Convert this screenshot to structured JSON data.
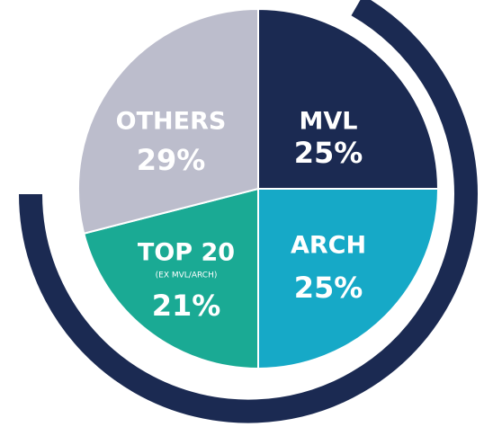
{
  "chart_data": {
    "type": "pie",
    "categories": [
      "MVL",
      "ARCH",
      "TOP 20",
      "OTHERS"
    ],
    "values": [
      25,
      25,
      21,
      29
    ],
    "value_labels": [
      "25%",
      "25%",
      "21%",
      "29%"
    ],
    "colors": [
      "#1b2a52",
      "#16a9c7",
      "#1aaa94",
      "#bcbdcc"
    ],
    "note": "(EX MVL/ARCH)"
  }
}
